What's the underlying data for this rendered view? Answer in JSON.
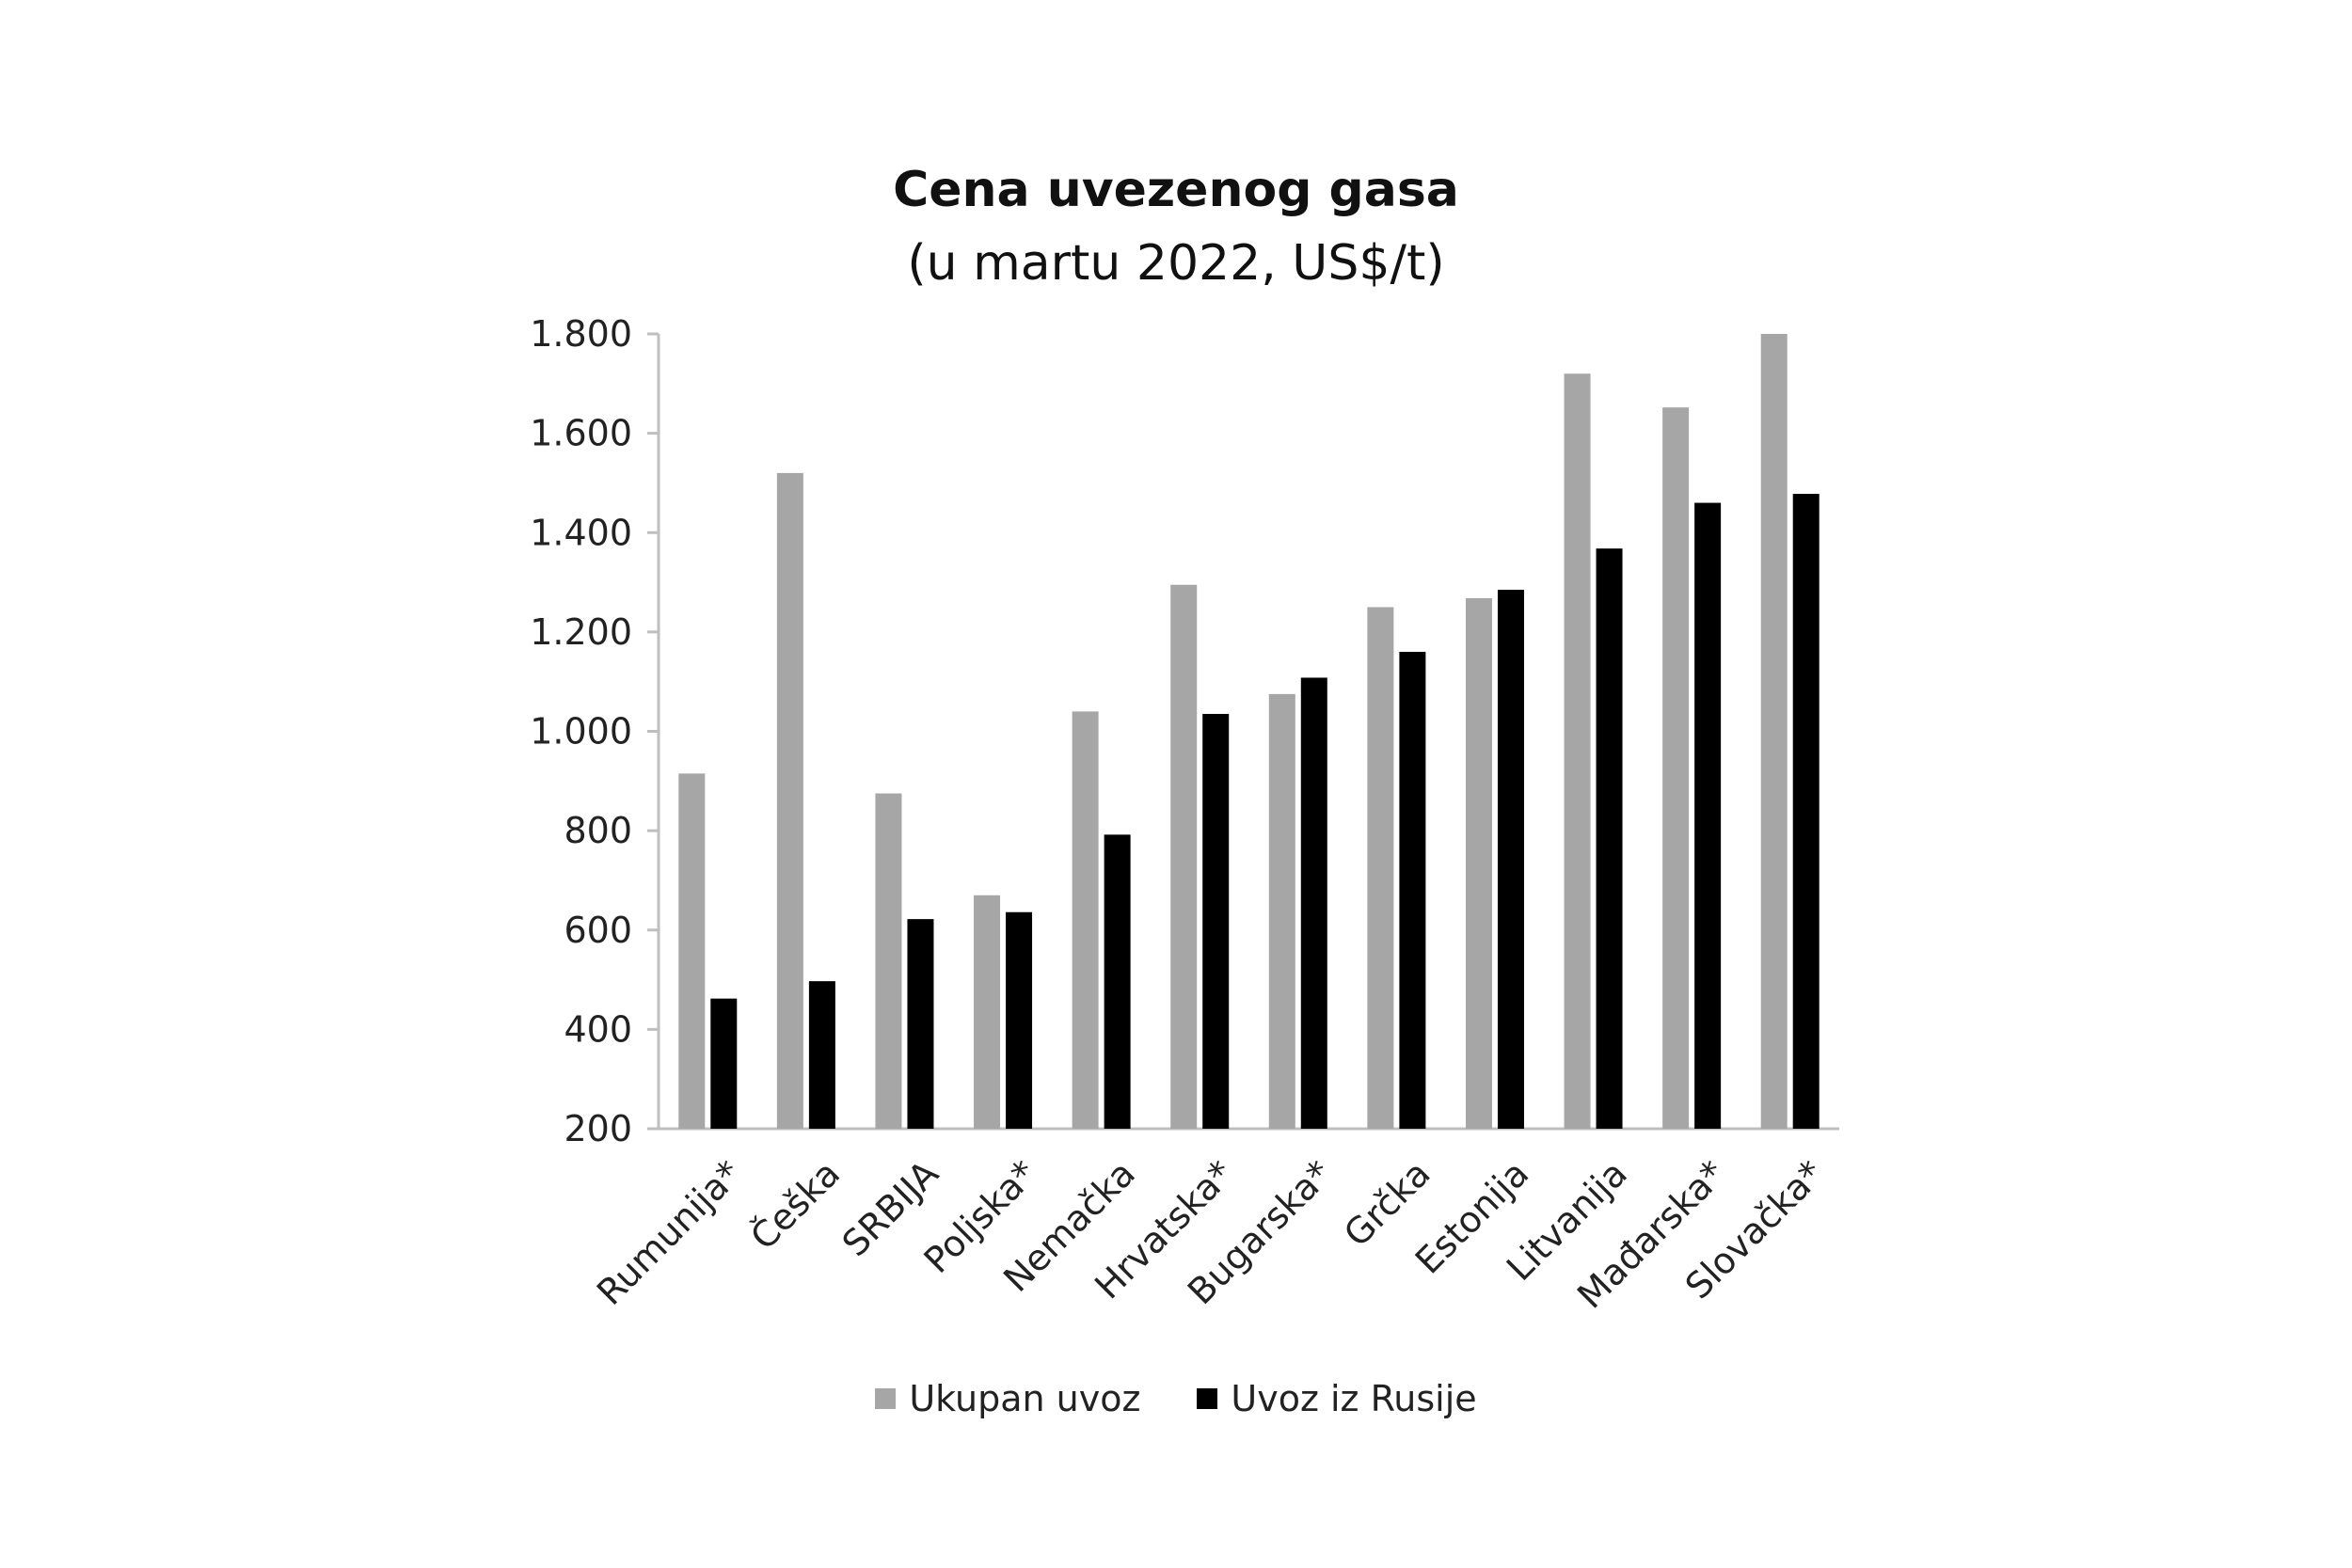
{
  "chart_data": {
    "type": "bar",
    "title": "Cena uvezenog gasa",
    "subtitle": "(u martu 2022, US$/t)",
    "xlabel": "",
    "ylabel": "",
    "ylim": [
      200,
      1800
    ],
    "yticks": [
      200,
      400,
      600,
      800,
      1000,
      1200,
      1400,
      1600,
      1800
    ],
    "ytick_labels": [
      "200",
      "400",
      "600",
      "800",
      "1.000",
      "1.200",
      "1.400",
      "1.600",
      "1.800"
    ],
    "categories": [
      "Rumunija*",
      "Češka",
      "SRBIJA",
      "Poljska*",
      "Nemačka",
      "Hrvatska*",
      "Bugarska*",
      "Grčka",
      "Estonija",
      "Litvanija",
      "Mađarska*",
      "Slovačka*"
    ],
    "series": [
      {
        "name": "Ukupan uvoz",
        "color": "#a6a6a6",
        "values": [
          915,
          1520,
          875,
          670,
          1040,
          1295,
          1075,
          1250,
          1268,
          1720,
          1652,
          1800
        ]
      },
      {
        "name": "Uvoz iz Rusije",
        "color": "#000000",
        "values": [
          462,
          497,
          622,
          636,
          792,
          1035,
          1108,
          1160,
          1285,
          1368,
          1460,
          1478
        ]
      }
    ],
    "grid": false,
    "legend_position": "bottom-center"
  }
}
